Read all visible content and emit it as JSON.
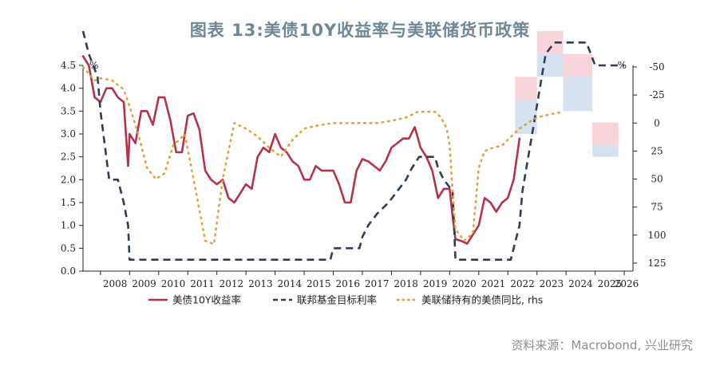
{
  "title": "图表 13:美债10Y收益率与美联储货币政策",
  "source": "资料来源：Macrobond, 兴业研究",
  "colors": {
    "yield": "#b5334a",
    "fed_funds": "#2e3e55",
    "balance_sheet": "#e0a23a",
    "band_upper": "#f8d5da",
    "band_lower": "#d6e2f0"
  },
  "chart_data": {
    "type": "line",
    "x_ticks": [
      "2008",
      "2009",
      "2010",
      "2011",
      "2012",
      "2013",
      "2014",
      "2015",
      "2016",
      "2017",
      "2018",
      "2019",
      "2020",
      "2021",
      "2022",
      "2023",
      "2024",
      "2025",
      "2026"
    ],
    "y_left": {
      "unit": "%",
      "range": [
        0,
        4.5
      ],
      "ticks": [
        "4.5",
        "4.0",
        "3.5",
        "3.0",
        "2.5",
        "2.0",
        "1.5",
        "1.0",
        "0.5",
        "0.0"
      ]
    },
    "y_right": {
      "unit": "%",
      "range": [
        -50,
        125
      ],
      "inverted": true,
      "ticks": [
        "-50",
        "-25",
        "0",
        "25",
        "50",
        "75",
        "100",
        "125"
      ]
    },
    "legend": [
      "美债10Y收益率",
      "联邦基金目标利率",
      "美联储持有的美债同比, rhs"
    ],
    "series": [
      {
        "name": "美债10Y收益率",
        "axis": "left",
        "style": "solid",
        "x": [
          2007.4,
          2007.6,
          2007.8,
          2008.0,
          2008.2,
          2008.4,
          2008.6,
          2008.8,
          2008.95,
          2009.0,
          2009.2,
          2009.4,
          2009.6,
          2009.8,
          2010.0,
          2010.2,
          2010.4,
          2010.6,
          2010.8,
          2011.0,
          2011.2,
          2011.4,
          2011.6,
          2011.8,
          2012.0,
          2012.2,
          2012.4,
          2012.6,
          2012.8,
          2013.0,
          2013.2,
          2013.4,
          2013.6,
          2013.8,
          2014.0,
          2014.2,
          2014.4,
          2014.6,
          2014.8,
          2015.0,
          2015.2,
          2015.4,
          2015.6,
          2015.8,
          2016.0,
          2016.2,
          2016.4,
          2016.6,
          2016.8,
          2017.0,
          2017.2,
          2017.4,
          2017.6,
          2017.8,
          2018.0,
          2018.2,
          2018.4,
          2018.6,
          2018.8,
          2019.0,
          2019.2,
          2019.4,
          2019.6,
          2019.8,
          2020.0,
          2020.1,
          2020.2,
          2020.4,
          2020.6,
          2020.8,
          2021.0,
          2021.2,
          2021.4,
          2021.6,
          2021.8,
          2022.0,
          2022.2,
          2022.4
        ],
        "y": [
          4.7,
          4.5,
          3.8,
          3.7,
          4.0,
          4.0,
          3.8,
          3.7,
          2.3,
          3.0,
          2.8,
          3.5,
          3.5,
          3.2,
          3.8,
          3.8,
          3.3,
          2.6,
          2.6,
          3.4,
          3.45,
          3.1,
          2.2,
          2.0,
          1.9,
          2.0,
          1.6,
          1.5,
          1.7,
          1.9,
          1.8,
          2.5,
          2.7,
          2.6,
          3.0,
          2.7,
          2.6,
          2.4,
          2.3,
          2.0,
          2.0,
          2.3,
          2.2,
          2.2,
          2.2,
          1.9,
          1.5,
          1.5,
          2.2,
          2.45,
          2.4,
          2.3,
          2.2,
          2.4,
          2.7,
          2.8,
          2.9,
          2.9,
          3.15,
          2.7,
          2.5,
          2.2,
          1.6,
          1.8,
          1.8,
          1.2,
          0.7,
          0.66,
          0.6,
          0.8,
          1.0,
          1.6,
          1.5,
          1.3,
          1.5,
          1.6,
          2.0,
          2.9
        ]
      },
      {
        "name": "联邦基金目标利率",
        "axis": "left",
        "style": "dashed",
        "x": [
          2007.4,
          2007.6,
          2007.9,
          2008.0,
          2008.1,
          2008.3,
          2008.6,
          2008.8,
          2008.95,
          2009.0,
          2015.9,
          2016.0,
          2016.9,
          2017.0,
          2017.2,
          2017.5,
          2017.9,
          2018.2,
          2018.5,
          2018.7,
          2018.95,
          2019.5,
          2019.6,
          2019.8,
          2020.1,
          2020.2,
          2022.1,
          2022.2,
          2022.4,
          2022.5,
          2022.7,
          2022.9,
          2023.1,
          2023.3,
          2023.6,
          2024.7,
          2025.0,
          2026.0
        ],
        "y": [
          5.25,
          4.75,
          4.25,
          3.5,
          3.0,
          2.0,
          2.0,
          1.5,
          1.0,
          0.25,
          0.25,
          0.5,
          0.5,
          0.75,
          1.0,
          1.25,
          1.5,
          1.75,
          2.0,
          2.25,
          2.5,
          2.5,
          2.25,
          2.0,
          1.75,
          0.25,
          0.25,
          0.5,
          1.0,
          1.75,
          2.5,
          3.25,
          4.0,
          4.75,
          5.0,
          5.0,
          4.5,
          4.5
        ]
      },
      {
        "name": "美联储持有的美债同比, rhs",
        "axis": "right",
        "style": "dotted",
        "x": [
          2007.4,
          2007.8,
          2008.0,
          2008.4,
          2008.8,
          2009.0,
          2009.3,
          2009.6,
          2009.9,
          2010.2,
          2010.5,
          2010.9,
          2011.2,
          2011.6,
          2011.9,
          2012.2,
          2012.6,
          2013.0,
          2013.4,
          2013.8,
          2014.2,
          2014.6,
          2015.0,
          2015.5,
          2016.0,
          2016.5,
          2017.0,
          2017.5,
          2018.0,
          2018.5,
          2018.9,
          2019.2,
          2019.5,
          2019.7,
          2019.9,
          2020.0,
          2020.1,
          2020.2,
          2020.5,
          2020.8,
          2021.0,
          2021.2,
          2021.5,
          2021.8,
          2022.0,
          2022.4,
          2022.8,
          2023.0,
          2023.5,
          2023.9
        ],
        "y": [
          -50,
          -38,
          -40,
          -38,
          -30,
          -15,
          10,
          40,
          50,
          45,
          20,
          10,
          50,
          105,
          108,
          50,
          0,
          5,
          12,
          22,
          30,
          15,
          5,
          2,
          0,
          0,
          0,
          0,
          -2,
          -5,
          -10,
          -10,
          -10,
          -5,
          5,
          20,
          60,
          95,
          105,
          98,
          40,
          25,
          22,
          20,
          15,
          5,
          -2,
          -5,
          -8,
          -10
        ]
      }
    ],
    "projection_bands": [
      {
        "x_start": 2022.25,
        "x_end": 2023.0,
        "mid": 3.75,
        "high": 4.25,
        "low": 3.0
      },
      {
        "x_start": 2023.0,
        "x_end": 2023.9,
        "mid": 4.75,
        "high": 5.25,
        "low": 4.25
      },
      {
        "x_start": 2023.9,
        "x_end": 2024.9,
        "mid": 4.25,
        "high": 4.75,
        "low": 3.5
      },
      {
        "x_start": 2024.9,
        "x_end": 2025.8,
        "mid": 2.75,
        "high": 3.25,
        "low": 2.5
      }
    ]
  }
}
